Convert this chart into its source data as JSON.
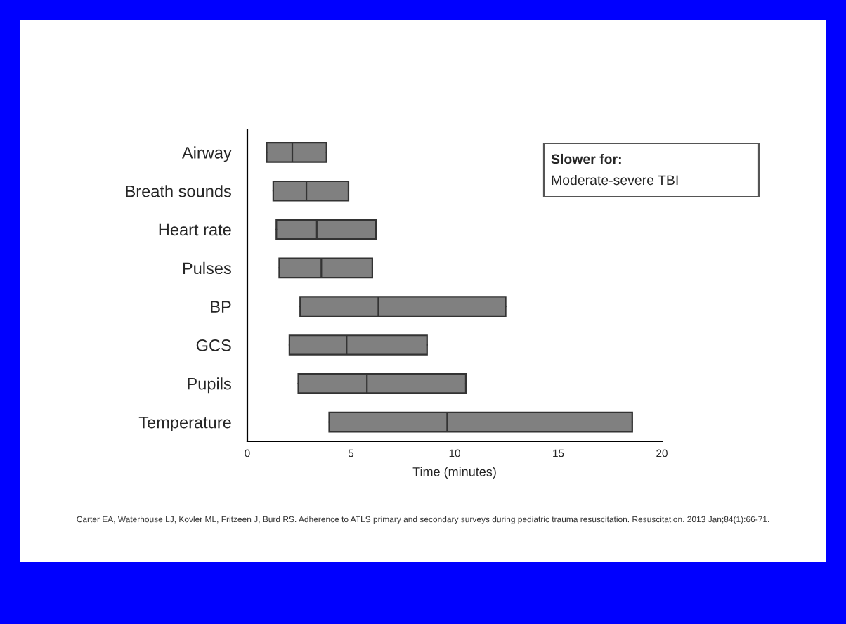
{
  "chart_data": {
    "type": "box",
    "orientation": "horizontal",
    "color": "#808080",
    "categories": [
      "Airway",
      "Breath sounds",
      "Heart rate",
      "Pulses",
      "BP",
      "GCS",
      "Pupils",
      "Temperature"
    ],
    "boxes": [
      {
        "low": 0.93,
        "q1": 0.93,
        "median": 2.17,
        "q3": 3.82,
        "high": 3.82
      },
      {
        "low": 1.25,
        "q1": 1.25,
        "median": 2.85,
        "q3": 4.88,
        "high": 4.88
      },
      {
        "low": 1.4,
        "q1": 1.4,
        "median": 3.35,
        "q3": 6.2,
        "high": 6.2
      },
      {
        "low": 1.54,
        "q1": 1.54,
        "median": 3.57,
        "q3": 6.03,
        "high": 6.03
      },
      {
        "low": 2.55,
        "q1": 2.55,
        "median": 6.32,
        "q3": 12.46,
        "high": 12.46
      },
      {
        "low": 2.03,
        "q1": 2.03,
        "median": 4.79,
        "q3": 8.67,
        "high": 8.67
      },
      {
        "low": 2.46,
        "q1": 2.46,
        "median": 5.77,
        "q3": 10.54,
        "high": 10.54
      },
      {
        "low": 3.95,
        "q1": 3.95,
        "median": 9.64,
        "q3": 18.57,
        "high": 18.57
      }
    ],
    "xlim": [
      0,
      20
    ],
    "xticks": [
      0,
      5,
      10,
      15,
      20
    ],
    "xlabel": "Time (minutes)",
    "annotations": [
      "Slower for:",
      "Moderate-severe TBI",
      "Carter EA, Waterhouse LJ, Kovler ML, Fritzeen J, Burd RS. Adherence to ATLS primary and secondary surveys during pediatric trauma resuscitation. Resuscitation. 2013 Jan;84(1):66-71."
    ]
  }
}
